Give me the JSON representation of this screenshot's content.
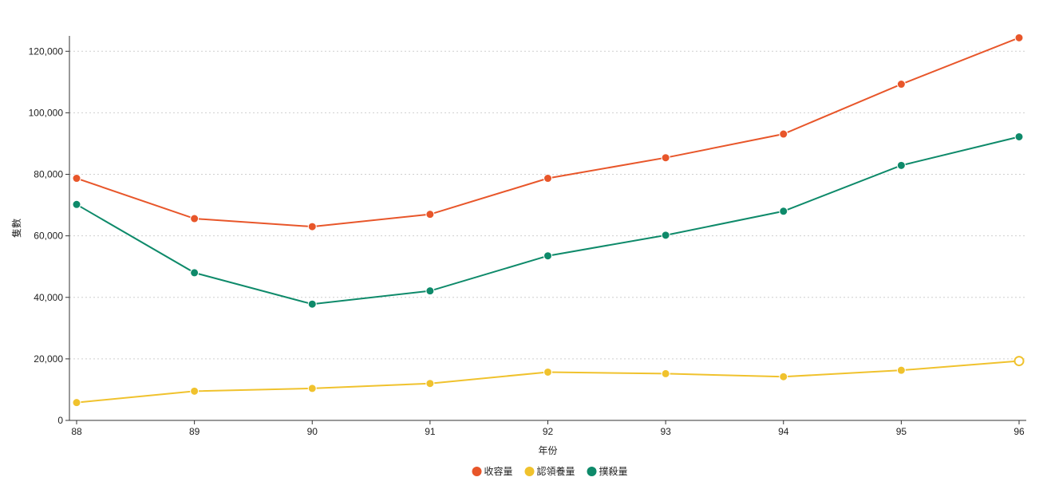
{
  "chart_data": {
    "type": "line",
    "title": "",
    "xlabel": "年份",
    "ylabel": "隻數",
    "x": [
      "88",
      "89",
      "90",
      "91",
      "92",
      "93",
      "94",
      "95",
      "96"
    ],
    "ylim": [
      0,
      125000
    ],
    "yticks": [
      0,
      20000,
      40000,
      60000,
      80000,
      100000,
      120000
    ],
    "ytick_labels": [
      "0",
      "20,000",
      "40,000",
      "60,000",
      "80,000",
      "100,000",
      "120,000"
    ],
    "grid": "horizontal dotted",
    "legend_position": "bottom-center",
    "series": [
      {
        "name": "收容量",
        "color": "#e8562a",
        "values": [
          78700,
          65600,
          63000,
          67000,
          78700,
          85400,
          93100,
          109300,
          124400
        ]
      },
      {
        "name": "認領養量",
        "color": "#f0c22d",
        "values": [
          5800,
          9500,
          10400,
          12000,
          15700,
          15200,
          14200,
          16300,
          19300
        ]
      },
      {
        "name": "撲殺量",
        "color": "#0e8a6a",
        "values": [
          70200,
          48000,
          37800,
          42100,
          53500,
          60200,
          68000,
          82900,
          92200
        ]
      }
    ]
  }
}
